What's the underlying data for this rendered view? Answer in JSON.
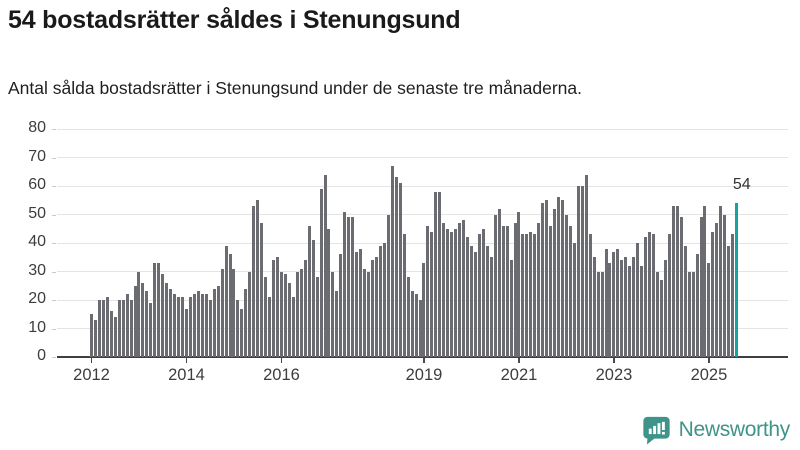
{
  "header": {
    "title": "54 bostadsrätter såldes i Stenungsund",
    "subtitle": "Antal sålda bostadsrätter i Stenungsund under de senaste tre månaderna."
  },
  "chart_data": {
    "type": "bar",
    "title": "54 bostadsrätter såldes i Stenungsund",
    "subtitle": "Antal sålda bostadsrätter i Stenungsund under de senaste tre månaderna.",
    "x_start": "2012-01",
    "x_end": "2025-08",
    "frequency": "monthly",
    "values": [
      15,
      13,
      20,
      20,
      21,
      16,
      14,
      20,
      20,
      22,
      20,
      25,
      30,
      26,
      23,
      19,
      33,
      33,
      29,
      26,
      24,
      22,
      21,
      21,
      17,
      21,
      22,
      23,
      22,
      22,
      20,
      24,
      25,
      31,
      39,
      36,
      31,
      20,
      17,
      24,
      30,
      53,
      55,
      47,
      28,
      21,
      34,
      35,
      30,
      29,
      26,
      21,
      30,
      31,
      34,
      46,
      41,
      28,
      59,
      64,
      45,
      30,
      23,
      36,
      51,
      49,
      49,
      37,
      38,
      31,
      30,
      34,
      35,
      39,
      40,
      50,
      67,
      63,
      61,
      43,
      28,
      23,
      22,
      20,
      33,
      46,
      44,
      58,
      58,
      47,
      45,
      44,
      45,
      47,
      48,
      42,
      39,
      37,
      43,
      45,
      39,
      35,
      50,
      52,
      46,
      46,
      34,
      47,
      51,
      43,
      43,
      44,
      43,
      47,
      54,
      55,
      46,
      52,
      56,
      55,
      50,
      46,
      40,
      60,
      60,
      64,
      43,
      35,
      30,
      30,
      38,
      33,
      37,
      38,
      34,
      35,
      32,
      35,
      40,
      32,
      42,
      44,
      43,
      30,
      27,
      34,
      43,
      53,
      53,
      49,
      39,
      30,
      30,
      36,
      49,
      53,
      33,
      44,
      47,
      53,
      50,
      39,
      43,
      54
    ],
    "ylim": [
      0,
      80
    ],
    "y_ticks": [
      0,
      10,
      20,
      30,
      40,
      50,
      60,
      70,
      80
    ],
    "x_tick_years": [
      2012,
      2014,
      2016,
      2019,
      2021,
      2023,
      2025
    ],
    "grid": "horizontal",
    "legend": "none",
    "bar_color": "#6b6b72",
    "highlight": {
      "index": 163,
      "value": 54,
      "label": "54",
      "color": "#13a3a0"
    }
  },
  "annotation": {
    "last_value_label": "54"
  },
  "footer": {
    "brand": "Newsworthy",
    "brand_color": "#3e9488",
    "logo_icon": "newsworthy-speech-bubble-chart-icon"
  },
  "colors": {
    "background": "#ffffff",
    "title_text": "#1a1a1a",
    "subtitle_text": "#1f1f1f",
    "axis_text": "#3d3d3d",
    "gridline": "#e4e4e4",
    "axis_line": "#403f3f",
    "bar": "#6b6b72",
    "highlight_bar": "#13a3a0"
  }
}
